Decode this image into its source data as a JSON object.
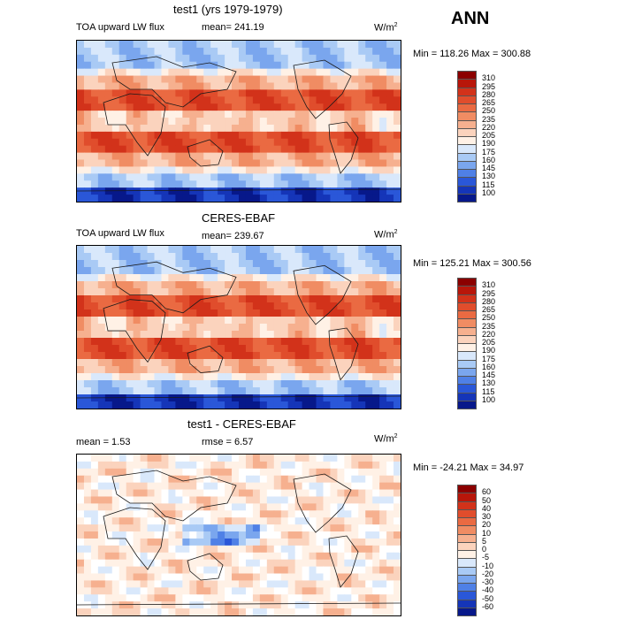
{
  "season": "ANN",
  "panels": [
    {
      "title": "test1 (yrs 1979-1979)",
      "left_text": "TOA upward LW flux",
      "mid_text": "mean=  241.19",
      "units": "W/m",
      "units_sup": "2",
      "minmax": "Min = 118.26 Max = 300.88",
      "colorbar_levels": [
        "310",
        "295",
        "280",
        "265",
        "250",
        "235",
        "220",
        "205",
        "190",
        "175",
        "160",
        "145",
        "130",
        "115",
        "100"
      ],
      "colorbar_colors": [
        "#8b0000",
        "#b8160a",
        "#d2321a",
        "#e04d2c",
        "#ea6a42",
        "#f08c63",
        "#f6b08f",
        "#fbd3bd",
        "#fff1e6",
        "#d9e8fb",
        "#a9caf5",
        "#7aa6ee",
        "#4f80e6",
        "#2a57d8",
        "#1535b8",
        "#07188a"
      ]
    },
    {
      "title": "CERES-EBAF",
      "left_text": "TOA upward LW flux",
      "mid_text": "mean=  239.67",
      "units": "W/m",
      "units_sup": "2",
      "minmax": "Min = 125.21 Max = 300.56",
      "colorbar_levels": [
        "310",
        "295",
        "280",
        "265",
        "250",
        "235",
        "220",
        "205",
        "190",
        "175",
        "160",
        "145",
        "130",
        "115",
        "100"
      ],
      "colorbar_colors": [
        "#8b0000",
        "#b8160a",
        "#d2321a",
        "#e04d2c",
        "#ea6a42",
        "#f08c63",
        "#f6b08f",
        "#fbd3bd",
        "#fff1e6",
        "#d9e8fb",
        "#a9caf5",
        "#7aa6ee",
        "#4f80e6",
        "#2a57d8",
        "#1535b8",
        "#07188a"
      ]
    },
    {
      "title": "test1 - CERES-EBAF",
      "left_text": "mean =    1.53",
      "mid_text": "rmse =    6.57",
      "units": "W/m",
      "units_sup": "2",
      "minmax": "Min = -24.21 Max =  34.97",
      "colorbar_levels": [
        "60",
        "50",
        "40",
        "30",
        "20",
        "10",
        "5",
        "0",
        "-5",
        "-10",
        "-20",
        "-30",
        "-40",
        "-50",
        "-60"
      ],
      "colorbar_colors": [
        "#8b0000",
        "#b8160a",
        "#d2321a",
        "#e04d2c",
        "#ea6a42",
        "#f08c63",
        "#f6b08f",
        "#fbd3bd",
        "#fff1e6",
        "#d9e8fb",
        "#a9caf5",
        "#7aa6ee",
        "#4f80e6",
        "#2a57d8",
        "#1535b8",
        "#07188a"
      ]
    }
  ],
  "chart_data": [
    {
      "type": "heatmap",
      "title": "test1 (yrs 1979-1979)",
      "variable": "TOA upward LW flux",
      "units": "W/m2",
      "mean": 241.19,
      "min": 118.26,
      "max": 300.88,
      "contour_levels": [
        100,
        115,
        130,
        145,
        160,
        175,
        190,
        205,
        220,
        235,
        250,
        265,
        280,
        295,
        310
      ]
    },
    {
      "type": "heatmap",
      "title": "CERES-EBAF",
      "variable": "TOA upward LW flux",
      "units": "W/m2",
      "mean": 239.67,
      "min": 125.21,
      "max": 300.56,
      "contour_levels": [
        100,
        115,
        130,
        145,
        160,
        175,
        190,
        205,
        220,
        235,
        250,
        265,
        280,
        295,
        310
      ]
    },
    {
      "type": "heatmap",
      "title": "test1 - CERES-EBAF",
      "units": "W/m2",
      "mean": 1.53,
      "rmse": 6.57,
      "min": -24.21,
      "max": 34.97,
      "contour_levels": [
        -60,
        -50,
        -40,
        -30,
        -20,
        -10,
        -5,
        0,
        5,
        10,
        20,
        30,
        40,
        50,
        60
      ]
    }
  ]
}
